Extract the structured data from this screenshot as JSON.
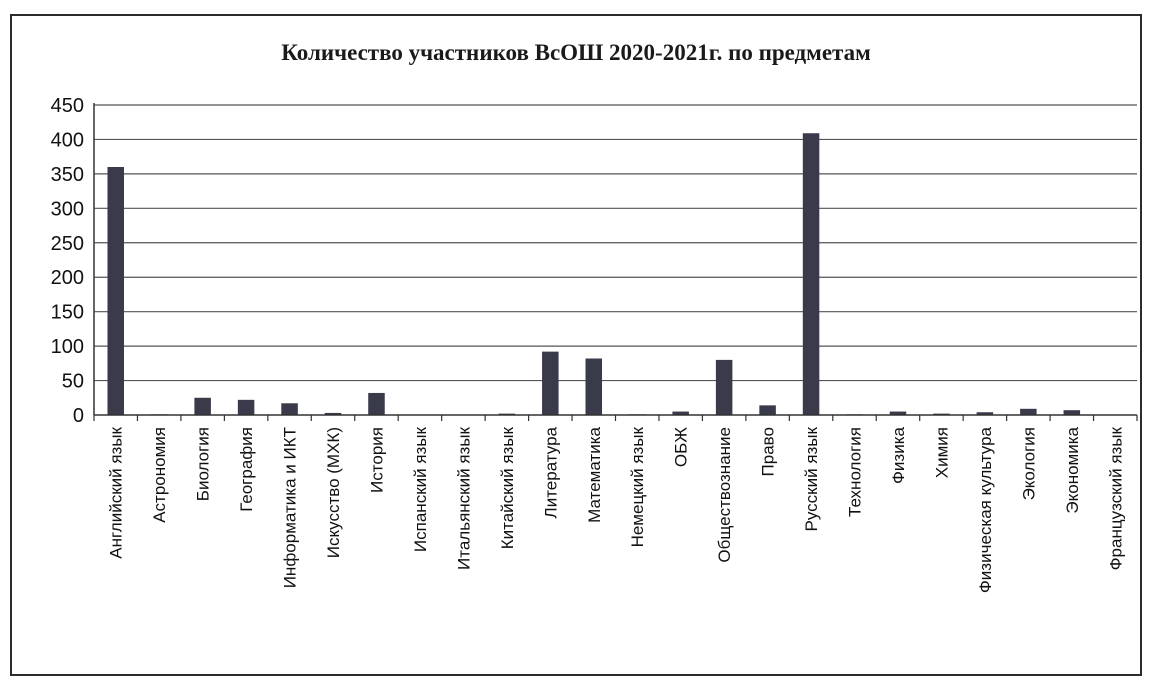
{
  "chart_data": {
    "type": "bar",
    "title": "Количество участников ВсОШ 2020-2021г. по предметам",
    "xlabel": "",
    "ylabel": "",
    "ylim": [
      0,
      450
    ],
    "yticks": [
      "0",
      "50",
      "100",
      "150",
      "200",
      "250",
      "300",
      "350",
      "400",
      "450"
    ],
    "grid": true,
    "legend": "none",
    "bar_color": "#3a3b4a",
    "categories": [
      "Английский язык",
      "Астрономия",
      "Биология",
      "География",
      "Информатика и ИКТ",
      "Искусство (МХК)",
      "История",
      "Испанский язык",
      "Итальянский язык",
      "Китайский язык",
      "Литература",
      "Математика",
      "Немецкий язык",
      "ОБЖ",
      "Обществознание",
      "Право",
      "Русский язык",
      "Технология",
      "Физика",
      "Химия",
      "Физическая культура",
      "Экология",
      "Экономика",
      "Французский язык"
    ],
    "values": [
      360,
      1,
      25,
      22,
      17,
      3,
      32,
      0,
      0,
      2,
      92,
      82,
      1,
      5,
      80,
      14,
      409,
      1,
      5,
      2,
      4,
      9,
      7,
      0
    ]
  }
}
